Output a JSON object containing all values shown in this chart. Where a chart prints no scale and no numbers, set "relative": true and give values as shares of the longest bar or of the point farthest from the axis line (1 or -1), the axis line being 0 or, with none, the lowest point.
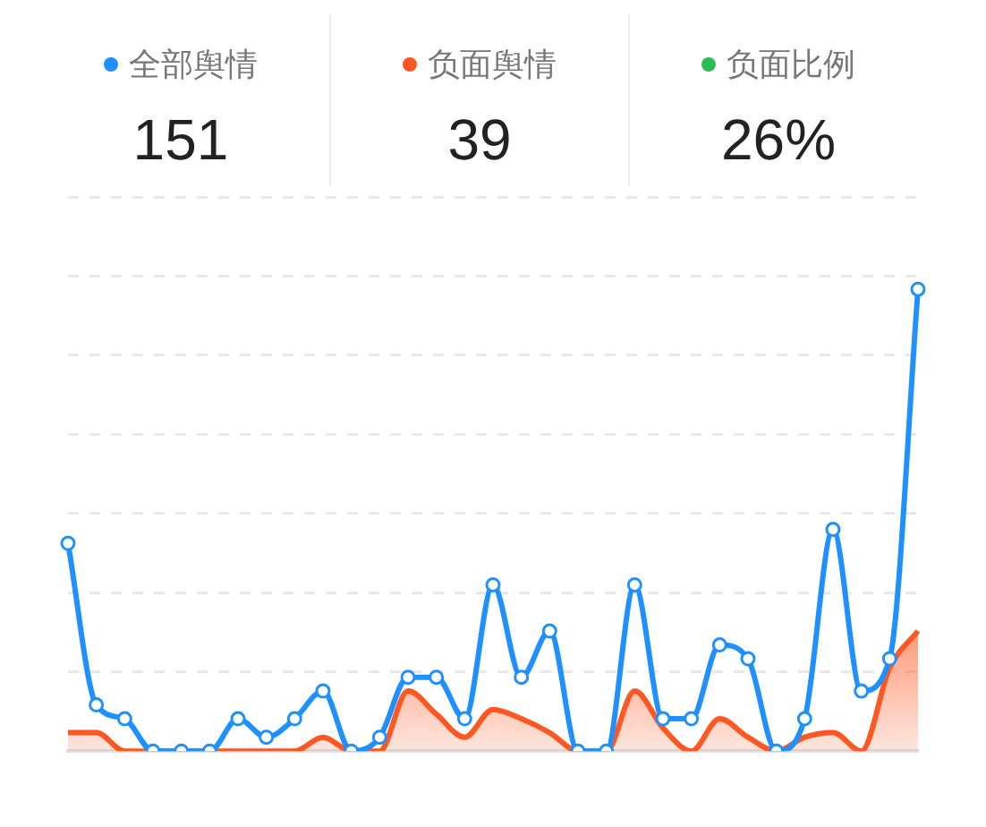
{
  "chart_data": [
    {
      "type": "other",
      "categories": [
        "全部舆情",
        "负面舆情",
        "负面比例"
      ],
      "value_labels": [
        "151",
        "39",
        "26%"
      ],
      "colors": [
        "#1e90ff",
        "#ff5722",
        "#2dbb55"
      ]
    },
    {
      "type": "area",
      "relative": true,
      "grid": "y",
      "legend": false,
      "categories": [
        null,
        null,
        null,
        null,
        null,
        null,
        null,
        null,
        null,
        null,
        null,
        null,
        null,
        null,
        null,
        null,
        null,
        null,
        null,
        null,
        null,
        null,
        null,
        null,
        null,
        null,
        null,
        null,
        null,
        null,
        null
      ],
      "series": [
        {
          "type": "line",
          "color": "#1e90ff",
          "marker": "circle",
          "values": [
            0.45,
            0.1,
            0.07,
            0,
            0,
            0,
            0.07,
            0.03,
            0.07,
            0.13,
            0,
            0.03,
            0.16,
            0.16,
            0.07,
            0.36,
            0.16,
            0.26,
            0,
            0,
            0.36,
            0.07,
            0.07,
            0.23,
            0.2,
            0,
            0.07,
            0.48,
            0.13,
            0.2,
            1
          ]
        },
        {
          "type": "area",
          "color": "#ff5722",
          "marker": "none",
          "values": [
            0.04,
            0.04,
            0,
            0,
            0,
            0,
            0,
            0,
            0,
            0.03,
            0,
            0,
            0.13,
            0.08,
            0.03,
            0.09,
            0.07,
            0.04,
            0,
            0,
            0.13,
            0.05,
            0,
            0.07,
            0.03,
            0,
            0.03,
            0.04,
            0,
            0.18,
            0.26
          ]
        }
      ]
    }
  ]
}
